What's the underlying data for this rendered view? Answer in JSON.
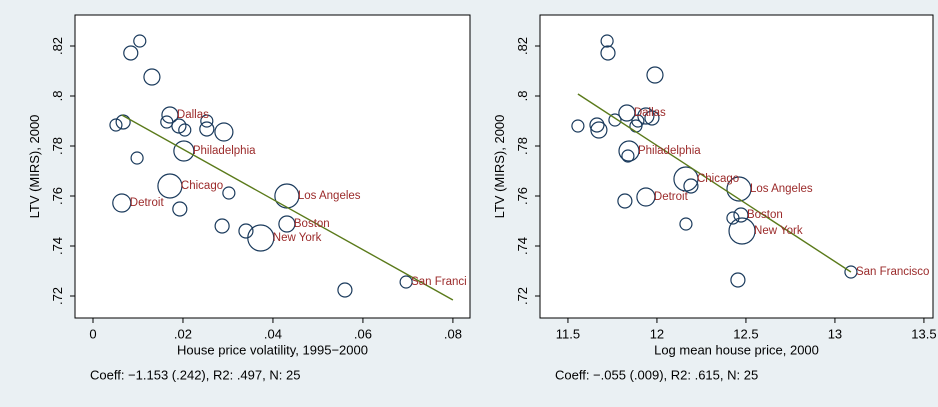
{
  "chart_data": [
    {
      "type": "bubble",
      "x_label": "House price volatility, 1995−2000",
      "y_label": "LTV (MIRS), 2000",
      "caption": "Coeff: −1.153 (.242), R2: .497, N: 25",
      "xlim": [
        -0.004,
        0.0838
      ],
      "ylim": [
        0.7112,
        0.8324
      ],
      "xticks": [
        0,
        {
          "value": 0.02,
          "label": ".02"
        },
        {
          "value": 0.04,
          "label": ".04"
        },
        {
          "value": 0.06,
          "label": ".06"
        },
        {
          "value": 0.08,
          "label": ".08"
        }
      ],
      "yticks": [
        {
          "value": 0.72,
          "label": ".72"
        },
        {
          "value": 0.74,
          "label": ".74"
        },
        {
          "value": 0.76,
          "label": ".76"
        },
        {
          "value": 0.78,
          "label": ".78"
        },
        {
          "value": 0.8,
          "label": ".8"
        },
        {
          "value": 0.82,
          "label": ".82"
        }
      ],
      "color": "#1a3a5c",
      "label_color": "#9b2a2a",
      "x": [
        0.0084,
        0.0104,
        0.0131,
        0.0051,
        0.0067,
        0.0098,
        0.0171,
        0.0191,
        0.0204,
        0.0253,
        0.0253,
        0.0291,
        0.0202,
        0.0171,
        0.0064,
        0.0193,
        0.0302,
        0.0287,
        0.034,
        0.0431,
        0.0431,
        0.0373,
        0.056,
        0.0696,
        0.0164
      ],
      "y": [
        0.8172,
        0.822,
        0.8076,
        0.7884,
        0.7896,
        0.7752,
        0.7924,
        0.788,
        0.7864,
        0.79,
        0.7868,
        0.7856,
        0.778,
        0.764,
        0.7572,
        0.7548,
        0.7612,
        0.748,
        0.746,
        0.76,
        0.7488,
        0.7432,
        0.7224,
        0.7256,
        0.7896
      ],
      "sizes": [
        7,
        6,
        8,
        6,
        7,
        6,
        8,
        7,
        6,
        6,
        7,
        9,
        10,
        12,
        9,
        7,
        6,
        7,
        7,
        12,
        8,
        13,
        7,
        6,
        6
      ],
      "labels": [
        null,
        null,
        null,
        null,
        null,
        null,
        "Dallas",
        null,
        null,
        null,
        null,
        null,
        "Philadelphia",
        "Chicago",
        "Detroit",
        null,
        null,
        null,
        null,
        "Los Angeles",
        "Boston",
        "New York",
        null,
        "San Franci",
        null
      ],
      "fit": {
        "color": "#5a7a1a",
        "x": [
          0.0064,
          0.08
        ],
        "y": [
          0.7924,
          0.7184
        ]
      }
    },
    {
      "type": "bubble",
      "x_label": "Log mean house price, 2000",
      "y_label": "LTV (MIRS), 2000",
      "caption": "Coeff: −.055 (.009), R2: .615, N: 25",
      "xlim": [
        11.343,
        13.551
      ],
      "ylim": [
        0.7112,
        0.8324
      ],
      "xticks": [
        11.5,
        12,
        12.5,
        13,
        13.5
      ],
      "yticks": [
        {
          "value": 0.72,
          "label": ".72"
        },
        {
          "value": 0.74,
          "label": ".74"
        },
        {
          "value": 0.76,
          "label": ".76"
        },
        {
          "value": 0.78,
          "label": ".78"
        },
        {
          "value": 0.8,
          "label": ".8"
        },
        {
          "value": 0.82,
          "label": ".82"
        }
      ],
      "color": "#1a3a5c",
      "label_color": "#9b2a2a",
      "x": [
        11.72,
        11.725,
        11.989,
        11.556,
        11.663,
        11.674,
        11.764,
        11.882,
        11.893,
        11.831,
        11.938,
        11.972,
        11.843,
        11.837,
        12.163,
        12.191,
        11.938,
        11.82,
        12.163,
        12.461,
        12.427,
        12.472,
        12.478,
        12.455,
        13.09
      ],
      "y": [
        0.822,
        0.8172,
        0.8084,
        0.788,
        0.7884,
        0.7864,
        0.7904,
        0.788,
        0.79,
        0.7932,
        0.792,
        0.7912,
        0.778,
        0.776,
        0.7668,
        0.764,
        0.7596,
        0.758,
        0.7488,
        0.7628,
        0.7512,
        0.7524,
        0.746,
        0.7264,
        0.7296
      ],
      "sizes": [
        6,
        7,
        8,
        6,
        7,
        8,
        6,
        6,
        6,
        8,
        8,
        7,
        10,
        6,
        12,
        7,
        9,
        7,
        6,
        12,
        6,
        7,
        13,
        7,
        6
      ],
      "labels": [
        null,
        null,
        null,
        null,
        null,
        null,
        null,
        null,
        null,
        "Dallas",
        null,
        null,
        "Philadelphia",
        null,
        "Chicago",
        null,
        "Detroit",
        null,
        null,
        "Los Angeles",
        null,
        "Boston",
        "New York",
        null,
        "San Francisco"
      ],
      "fit": {
        "color": "#5a7a1a",
        "x": [
          11.556,
          13.09
        ],
        "y": [
          0.8008,
          0.7296
        ]
      }
    }
  ]
}
